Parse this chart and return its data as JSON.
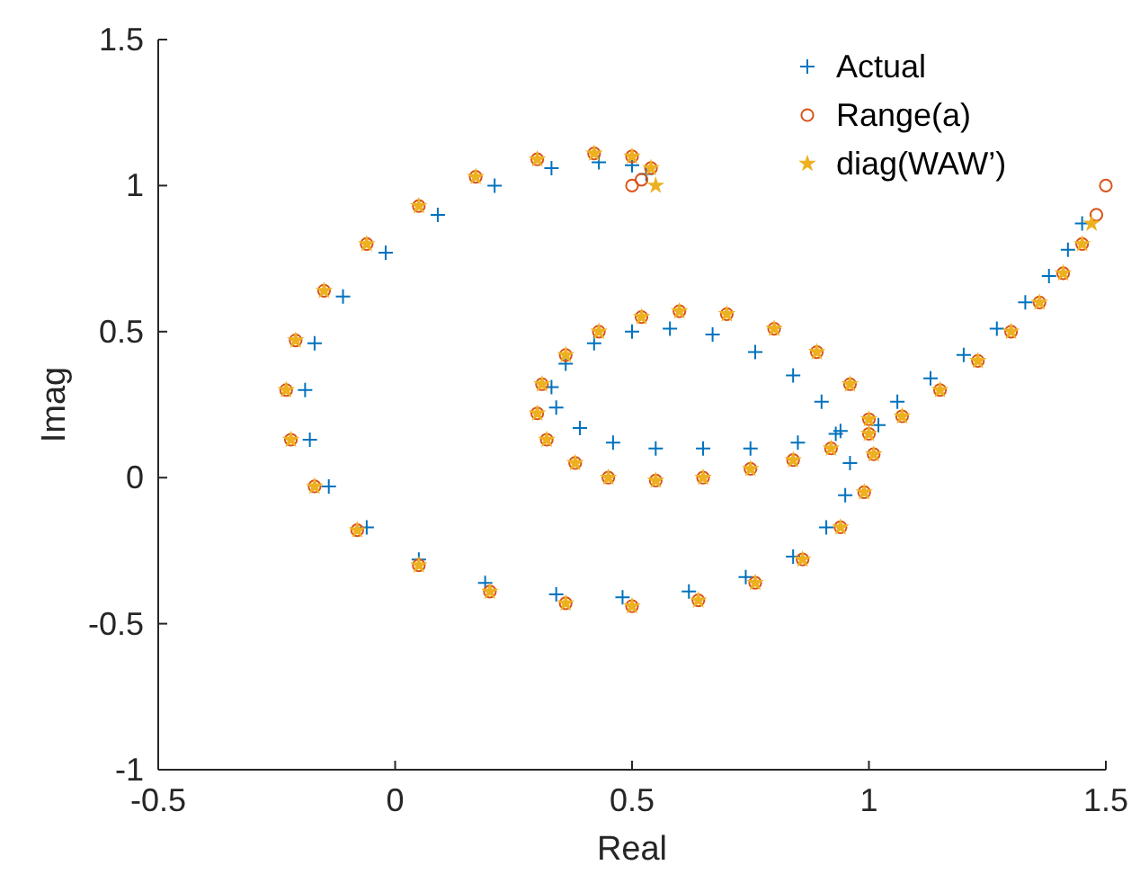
{
  "chart_data": {
    "type": "scatter",
    "xlabel": "Real",
    "ylabel": "Imag",
    "xlim": [
      -0.5,
      1.5
    ],
    "ylim": [
      -1,
      1.5
    ],
    "xticks": [
      -0.5,
      0,
      0.5,
      1,
      1.5
    ],
    "yticks": [
      -1,
      -0.5,
      0,
      0.5,
      1,
      1.5
    ],
    "grid": false,
    "legend": "top right",
    "series": [
      {
        "name": "Actual",
        "color": "#0072bd",
        "marker": "cross",
        "x": [
          1.45,
          1.42,
          1.38,
          1.33,
          1.27,
          1.2,
          1.13,
          1.06,
          1.02,
          0.93,
          0.85,
          0.75,
          0.65,
          0.55,
          0.46,
          0.39,
          0.34,
          0.33,
          0.36,
          0.42,
          0.5,
          0.58,
          0.67,
          0.76,
          0.84,
          0.9,
          0.94,
          0.96,
          0.95,
          0.91,
          0.84,
          0.74,
          0.62,
          0.48,
          0.34,
          0.19,
          0.05,
          -0.06,
          -0.14,
          -0.18,
          -0.19,
          -0.17,
          -0.11,
          -0.02,
          0.09,
          0.21,
          0.33,
          0.43,
          0.5,
          0.53
        ],
        "values": [
          0.87,
          0.78,
          0.69,
          0.6,
          0.51,
          0.42,
          0.34,
          0.26,
          0.18,
          0.15,
          0.12,
          0.1,
          0.1,
          0.1,
          0.12,
          0.17,
          0.24,
          0.31,
          0.39,
          0.46,
          0.5,
          0.51,
          0.49,
          0.43,
          0.35,
          0.26,
          0.16,
          0.05,
          -0.06,
          -0.17,
          -0.27,
          -0.34,
          -0.39,
          -0.41,
          -0.4,
          -0.36,
          -0.28,
          -0.17,
          -0.03,
          0.13,
          0.3,
          0.46,
          0.62,
          0.77,
          0.9,
          1.0,
          1.06,
          1.08,
          1.07,
          1.04
        ]
      },
      {
        "name": "Range(a)",
        "color": "#d95319",
        "marker": "circle",
        "x": [
          1.5,
          1.48,
          1.45,
          1.41,
          1.36,
          1.3,
          1.23,
          1.15,
          1.07,
          1.0,
          0.92,
          0.84,
          0.75,
          0.65,
          0.55,
          0.45,
          0.38,
          0.32,
          0.3,
          0.31,
          0.36,
          0.43,
          0.52,
          0.6,
          0.7,
          0.8,
          0.89,
          0.96,
          1.0,
          1.01,
          0.99,
          0.94,
          0.86,
          0.76,
          0.64,
          0.5,
          0.36,
          0.2,
          0.05,
          -0.08,
          -0.17,
          -0.22,
          -0.23,
          -0.21,
          -0.15,
          -0.06,
          0.05,
          0.17,
          0.3,
          0.42,
          0.5,
          0.54,
          0.52,
          0.5
        ],
        "values": [
          1.0,
          0.9,
          0.8,
          0.7,
          0.6,
          0.5,
          0.4,
          0.3,
          0.21,
          0.15,
          0.1,
          0.06,
          0.03,
          0.0,
          -0.01,
          0.0,
          0.05,
          0.13,
          0.22,
          0.32,
          0.42,
          0.5,
          0.55,
          0.57,
          0.56,
          0.51,
          0.43,
          0.32,
          0.2,
          0.08,
          -0.05,
          -0.17,
          -0.28,
          -0.36,
          -0.42,
          -0.44,
          -0.43,
          -0.39,
          -0.3,
          -0.18,
          -0.03,
          0.13,
          0.3,
          0.47,
          0.64,
          0.8,
          0.93,
          1.03,
          1.09,
          1.11,
          1.1,
          1.06,
          1.02,
          1.0
        ]
      },
      {
        "name": "diag(WAW’)",
        "color": "#edb120",
        "marker": "star",
        "x": [
          1.47,
          1.45,
          1.41,
          1.36,
          1.3,
          1.23,
          1.15,
          1.07,
          1.0,
          0.92,
          0.84,
          0.75,
          0.65,
          0.55,
          0.45,
          0.38,
          0.32,
          0.3,
          0.31,
          0.36,
          0.43,
          0.52,
          0.6,
          0.7,
          0.8,
          0.89,
          0.96,
          1.0,
          1.01,
          0.99,
          0.94,
          0.86,
          0.76,
          0.64,
          0.5,
          0.36,
          0.2,
          0.05,
          -0.08,
          -0.17,
          -0.22,
          -0.23,
          -0.21,
          -0.15,
          -0.06,
          0.05,
          0.17,
          0.3,
          0.42,
          0.5,
          0.54,
          0.55
        ],
        "values": [
          0.87,
          0.8,
          0.7,
          0.6,
          0.5,
          0.4,
          0.3,
          0.21,
          0.15,
          0.1,
          0.06,
          0.03,
          0.0,
          -0.01,
          0.0,
          0.05,
          0.13,
          0.22,
          0.32,
          0.42,
          0.5,
          0.55,
          0.57,
          0.56,
          0.51,
          0.43,
          0.32,
          0.2,
          0.08,
          -0.05,
          -0.17,
          -0.28,
          -0.36,
          -0.42,
          -0.44,
          -0.43,
          -0.39,
          -0.3,
          -0.18,
          -0.03,
          0.13,
          0.3,
          0.47,
          0.64,
          0.8,
          0.93,
          1.03,
          1.09,
          1.11,
          1.1,
          1.06,
          1.0
        ]
      }
    ]
  }
}
